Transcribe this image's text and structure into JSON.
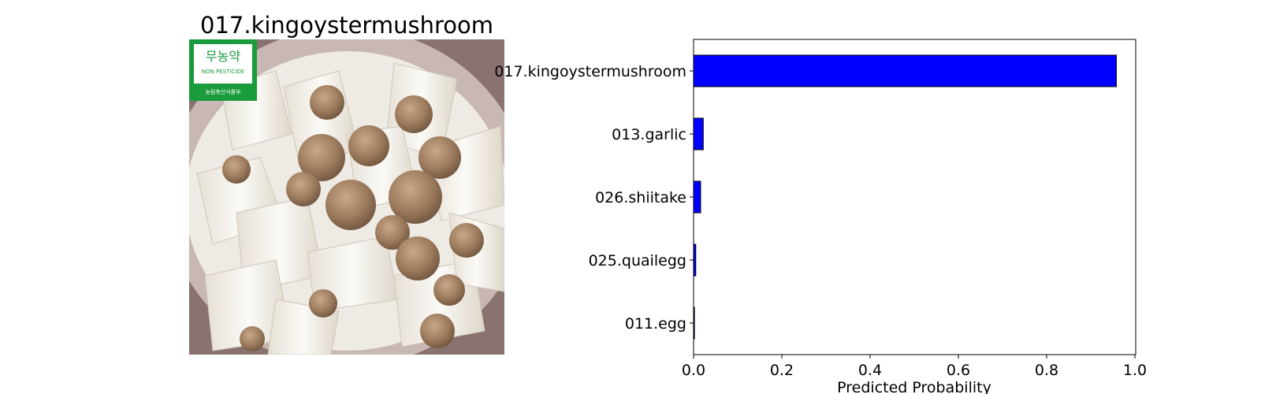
{
  "image_panel": {
    "title": "017.kingoystermushroom",
    "badge_line1": "무농약",
    "badge_line2": "NON PESTICIDE",
    "badge_line3": "농림축산식품부"
  },
  "chart_data": {
    "type": "bar",
    "orientation": "horizontal",
    "categories": [
      "017.kingoystermushroom",
      "013.garlic",
      "026.shiitake",
      "025.quailegg",
      "011.egg"
    ],
    "values": [
      0.958,
      0.022,
      0.016,
      0.005,
      0.002
    ],
    "xlabel": "Predicted Probability",
    "ylabel": "",
    "xlim": [
      0.0,
      1.0
    ],
    "xticks": [
      "0.0",
      "0.2",
      "0.4",
      "0.6",
      "0.8",
      "1.0"
    ],
    "bar_color": "#0000ff",
    "grid": false
  }
}
